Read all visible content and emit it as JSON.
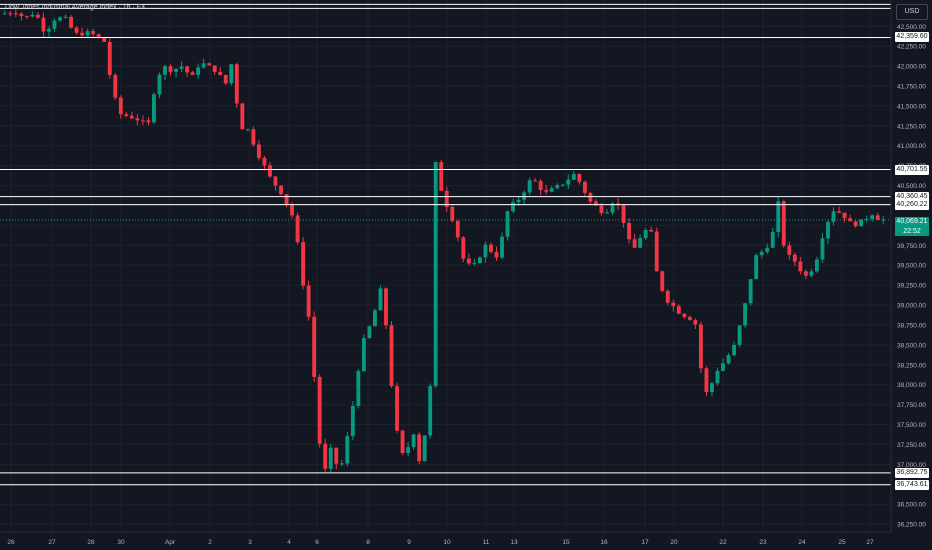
{
  "header": {
    "title": "Dow Jones Industrial Average Index · 1h · FX",
    "currency": "USD"
  },
  "price_label": {
    "price": "40,069.21",
    "countdown": "22:52"
  },
  "colors": {
    "background": "#131722",
    "up": "#089981",
    "down": "#f23645",
    "grid": "#1e222d",
    "axis_text": "#b2b5be",
    "level": "#ffffff"
  },
  "chart_data": {
    "type": "candlestick",
    "symbol": "Dow Jones Industrial Average Index",
    "timeframe": "1h",
    "y_axis": {
      "ticks": [
        42500,
        42250,
        42000,
        41750,
        41500,
        41250,
        41000,
        40750,
        40500,
        40250,
        40000,
        39750,
        39500,
        39250,
        39000,
        38750,
        38500,
        38250,
        38000,
        37750,
        37500,
        37250,
        37000,
        36750,
        36500,
        36250
      ],
      "tick_labels": [
        "42,500.00",
        "42,250.00",
        "42,000.00",
        "41,750.00",
        "41,500.00",
        "41,250.00",
        "41,000.00",
        "40,750.00",
        "40,500.00",
        "40,250.00",
        "40,000.00",
        "39,750.00",
        "39,500.00",
        "39,250.00",
        "39,000.00",
        "38,750.00",
        "38,500.00",
        "38,250.00",
        "38,000.00",
        "37,750.00",
        "37,500.00",
        "37,250.00",
        "37,000.00",
        "36,750.00",
        "36,500.00",
        "36,250.00"
      ],
      "range": [
        36150,
        42830
      ]
    },
    "x_axis": {
      "tick_labels": [
        "26",
        "27",
        "28",
        "30",
        "Apr",
        "2",
        "3",
        "4",
        "6",
        "8",
        "9",
        "10",
        "11",
        "13",
        "15",
        "16",
        "17",
        "20",
        "22",
        "23",
        "24",
        "25",
        "27"
      ]
    },
    "levels": [
      {
        "value": 42359.6,
        "label": "42,359.60"
      },
      {
        "value": 40701.55,
        "label": "40,701.55"
      },
      {
        "value": 40360.45,
        "label": "40,360.45"
      },
      {
        "value": 40260.22,
        "label": "40,260.22"
      },
      {
        "value": 36892.75,
        "label": "36,892.75"
      },
      {
        "value": 36743.61,
        "label": "36,743.61"
      }
    ],
    "extra_levels": [
      42775,
      42725
    ],
    "last_price": 40069.21,
    "path": [
      [
        0,
        42650
      ],
      [
        15,
        42690
      ],
      [
        25,
        42600
      ],
      [
        35,
        42680
      ],
      [
        45,
        42420
      ],
      [
        55,
        42600
      ],
      [
        65,
        42600
      ],
      [
        75,
        42400
      ],
      [
        90,
        42420
      ],
      [
        105,
        42300
      ],
      [
        112,
        41700
      ],
      [
        120,
        41400
      ],
      [
        135,
        41350
      ],
      [
        148,
        41250
      ],
      [
        155,
        41750
      ],
      [
        162,
        42000
      ],
      [
        172,
        41950
      ],
      [
        182,
        42000
      ],
      [
        192,
        41850
      ],
      [
        200,
        42050
      ],
      [
        215,
        41950
      ],
      [
        228,
        41750
      ],
      [
        234,
        42250
      ],
      [
        238,
        41250
      ],
      [
        248,
        41200
      ],
      [
        258,
        40900
      ],
      [
        270,
        40600
      ],
      [
        282,
        40400
      ],
      [
        295,
        40050
      ],
      [
        300,
        39500
      ],
      [
        310,
        38750
      ],
      [
        318,
        37500
      ],
      [
        323,
        36800
      ],
      [
        330,
        37200
      ],
      [
        340,
        36900
      ],
      [
        350,
        37500
      ],
      [
        362,
        38500
      ],
      [
        372,
        38800
      ],
      [
        382,
        39250
      ],
      [
        388,
        38500
      ],
      [
        395,
        37500
      ],
      [
        405,
        37000
      ],
      [
        412,
        37500
      ],
      [
        420,
        37000
      ],
      [
        430,
        37800
      ],
      [
        433,
        40500
      ],
      [
        436,
        40800
      ],
      [
        442,
        40400
      ],
      [
        455,
        40000
      ],
      [
        465,
        39500
      ],
      [
        475,
        39500
      ],
      [
        485,
        39750
      ],
      [
        498,
        39600
      ],
      [
        508,
        40200
      ],
      [
        520,
        40350
      ],
      [
        532,
        40600
      ],
      [
        545,
        40400
      ],
      [
        560,
        40500
      ],
      [
        575,
        40650
      ],
      [
        590,
        40300
      ],
      [
        605,
        40150
      ],
      [
        615,
        40350
      ],
      [
        625,
        40000
      ],
      [
        632,
        39650
      ],
      [
        640,
        39850
      ],
      [
        650,
        40000
      ],
      [
        658,
        39300
      ],
      [
        668,
        39050
      ],
      [
        680,
        38900
      ],
      [
        695,
        38800
      ],
      [
        703,
        38000
      ],
      [
        708,
        37850
      ],
      [
        715,
        38150
      ],
      [
        725,
        38300
      ],
      [
        735,
        38500
      ],
      [
        745,
        39000
      ],
      [
        755,
        39600
      ],
      [
        765,
        39700
      ],
      [
        772,
        39850
      ],
      [
        778,
        40300
      ],
      [
        785,
        39650
      ],
      [
        795,
        39550
      ],
      [
        805,
        39350
      ],
      [
        815,
        39500
      ],
      [
        822,
        39850
      ],
      [
        832,
        40200
      ],
      [
        842,
        40150
      ],
      [
        852,
        40000
      ],
      [
        862,
        40050
      ],
      [
        872,
        40150
      ],
      [
        880,
        40069
      ]
    ],
    "candle_count": 160
  }
}
